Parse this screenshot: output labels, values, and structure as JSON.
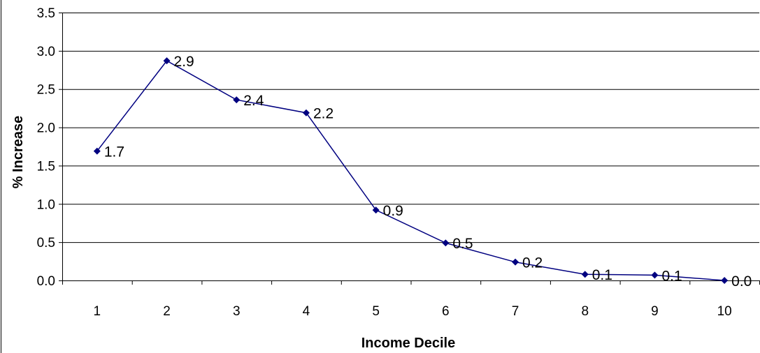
{
  "chart_data": {
    "type": "line",
    "title": "",
    "xlabel": "Income Decile",
    "ylabel": "% Increase",
    "categories": [
      "1",
      "2",
      "3",
      "4",
      "5",
      "6",
      "7",
      "8",
      "9",
      "10"
    ],
    "values": [
      1.69,
      2.87,
      2.36,
      2.19,
      0.92,
      0.49,
      0.24,
      0.08,
      0.07,
      0.0
    ],
    "data_labels": [
      "1.7",
      "2.9",
      "2.4",
      "2.2",
      "0.9",
      "0.5",
      "0.2",
      "0.1",
      "0.1",
      "0.0"
    ],
    "y_ticks": [
      "0.0",
      "0.5",
      "1.0",
      "1.5",
      "2.0",
      "2.5",
      "3.0",
      "3.5"
    ],
    "ylim": [
      0,
      3.5
    ],
    "grid": true,
    "legend": "none",
    "series_color": "#000080"
  }
}
